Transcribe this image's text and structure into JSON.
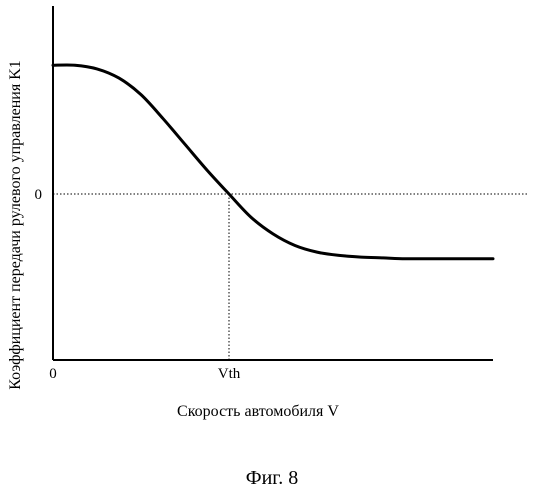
{
  "chart_data": {
    "type": "line",
    "title": "",
    "xlabel": "Скорость автомобиля V",
    "ylabel": "Коэффициент передачи рулевого управления K1",
    "x_ticks": [
      {
        "label": "0",
        "x": 0
      },
      {
        "label": "Vth",
        "x": 0.4
      }
    ],
    "y_ticks": [
      {
        "label": "0",
        "y": 0
      }
    ],
    "xlim": [
      0,
      1
    ],
    "ylim": [
      -1,
      1
    ],
    "grid": false,
    "reference_lines": [
      {
        "orientation": "horizontal",
        "y": 0,
        "style": "dotted"
      },
      {
        "orientation": "vertical",
        "x": 0.4,
        "style": "dotted"
      }
    ],
    "series": [
      {
        "x": [
          0,
          0.05,
          0.1,
          0.15,
          0.2,
          0.25,
          0.3,
          0.35,
          0.4,
          0.45,
          0.5,
          0.55,
          0.6,
          0.65,
          0.7,
          0.75,
          0.8,
          0.85,
          0.9,
          0.95,
          1.0
        ],
        "y": [
          0.7,
          0.7,
          0.68,
          0.63,
          0.54,
          0.41,
          0.27,
          0.13,
          0.0,
          -0.14,
          -0.24,
          -0.31,
          -0.35,
          -0.37,
          -0.38,
          -0.385,
          -0.39,
          -0.39,
          -0.39,
          -0.39,
          -0.39
        ]
      }
    ]
  },
  "figure_caption": "Фиг. 8"
}
